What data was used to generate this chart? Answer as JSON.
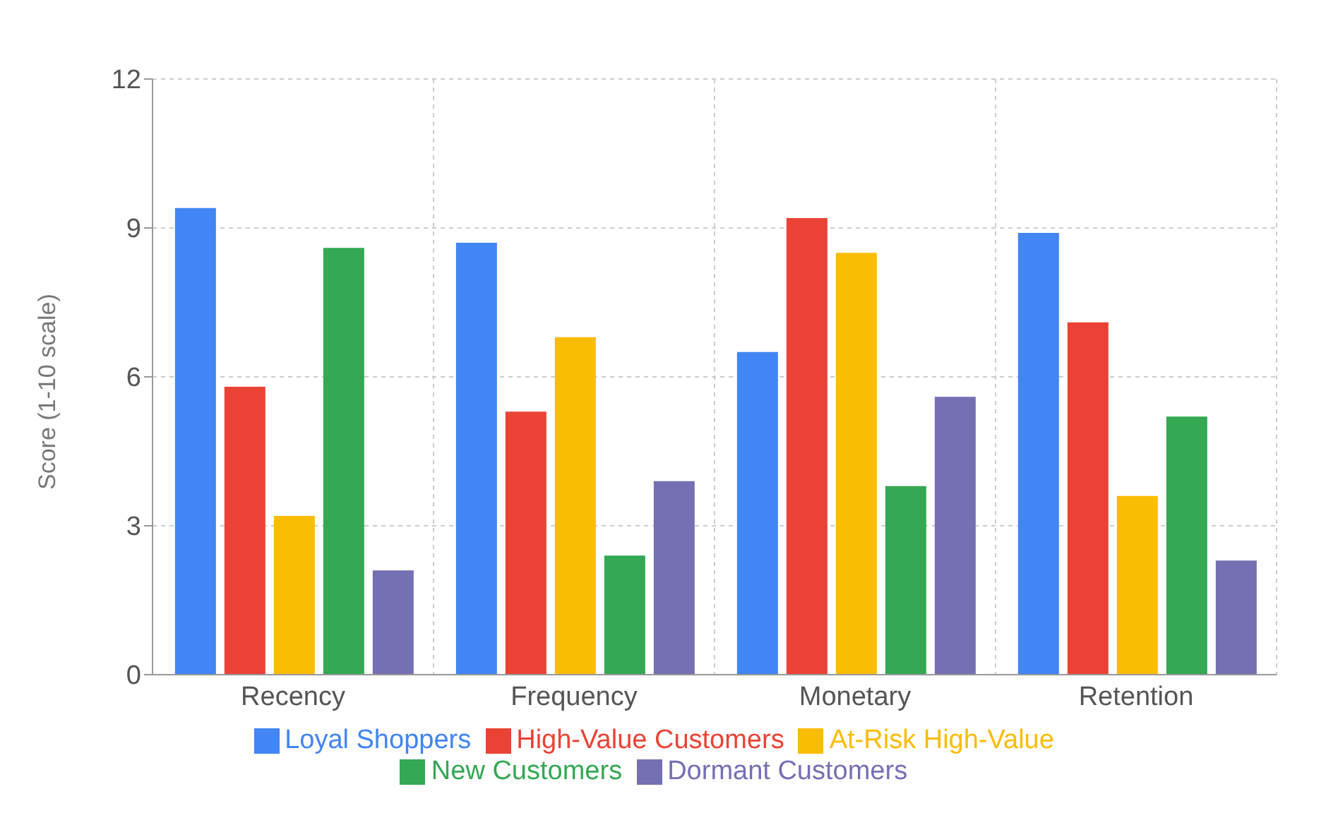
{
  "chart_data": {
    "type": "bar",
    "ylabel": "Score (1-10 scale)",
    "categories": [
      "Recency",
      "Frequency",
      "Monetary",
      "Retention"
    ],
    "series": [
      {
        "name": "Loyal Shoppers",
        "color": "#4285f4",
        "values": [
          9.4,
          8.7,
          6.5,
          8.9
        ]
      },
      {
        "name": "High-Value Customers",
        "color": "#ea4335",
        "values": [
          5.8,
          5.3,
          9.2,
          7.1
        ]
      },
      {
        "name": "At-Risk High-Value",
        "color": "#fbbc04",
        "values": [
          3.2,
          6.8,
          8.5,
          3.6
        ]
      },
      {
        "name": "New Customers",
        "color": "#34a853",
        "values": [
          8.6,
          2.4,
          3.8,
          5.2
        ]
      },
      {
        "name": "Dormant Customers",
        "color": "#7570b3",
        "values": [
          2.1,
          3.9,
          5.6,
          2.3
        ]
      }
    ],
    "ylim": [
      0,
      12
    ],
    "yticks": [
      0,
      3,
      6,
      9,
      12
    ],
    "grid": true,
    "legend": "bottom"
  }
}
